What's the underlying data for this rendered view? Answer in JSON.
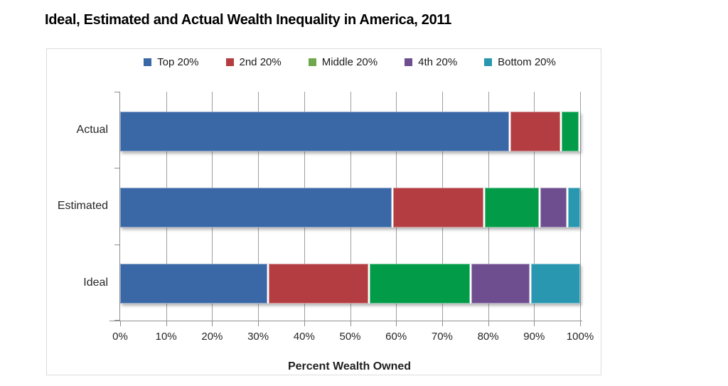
{
  "title": "Ideal, Estimated and Actual Wealth Inequality in America, 2011",
  "chart_data": {
    "type": "bar",
    "variant": "horizontal-stacked",
    "title": "Ideal, Estimated and Actual Wealth Inequality in America, 2011",
    "categories": [
      "Actual",
      "Estimated",
      "Ideal"
    ],
    "series": [
      {
        "name": "Top 20%",
        "color": "#3A67A6",
        "legend_color": "#3A67A6",
        "values": [
          84,
          59,
          32
        ]
      },
      {
        "name": "2nd 20%",
        "color": "#B43D42",
        "legend_color": "#B43D42",
        "values": [
          11,
          20,
          22
        ]
      },
      {
        "name": "Middle 20%",
        "color": "#029B48",
        "legend_color": "#6FA84C",
        "values": [
          4,
          12,
          22
        ]
      },
      {
        "name": "4th 20%",
        "color": "#6F4E90",
        "legend_color": "#6F4E90",
        "values": [
          0.2,
          6,
          13
        ]
      },
      {
        "name": "Bottom 20%",
        "color": "#2997B0",
        "legend_color": "#2997B0",
        "values": [
          0.1,
          3,
          11
        ]
      }
    ],
    "xlabel": "Percent Wealth Owned",
    "ylabel": "",
    "x_ticks": [
      "0%",
      "10%",
      "20%",
      "30%",
      "40%",
      "50%",
      "60%",
      "70%",
      "80%",
      "90%",
      "100%"
    ],
    "xlim": [
      0,
      100
    ],
    "legend_position": "top",
    "grid": "vertical",
    "colors": {
      "axis": "#8f8f8f",
      "gridline": "#9e9e9e",
      "panel_border": "#dcdcdc",
      "text": "#262626"
    }
  }
}
